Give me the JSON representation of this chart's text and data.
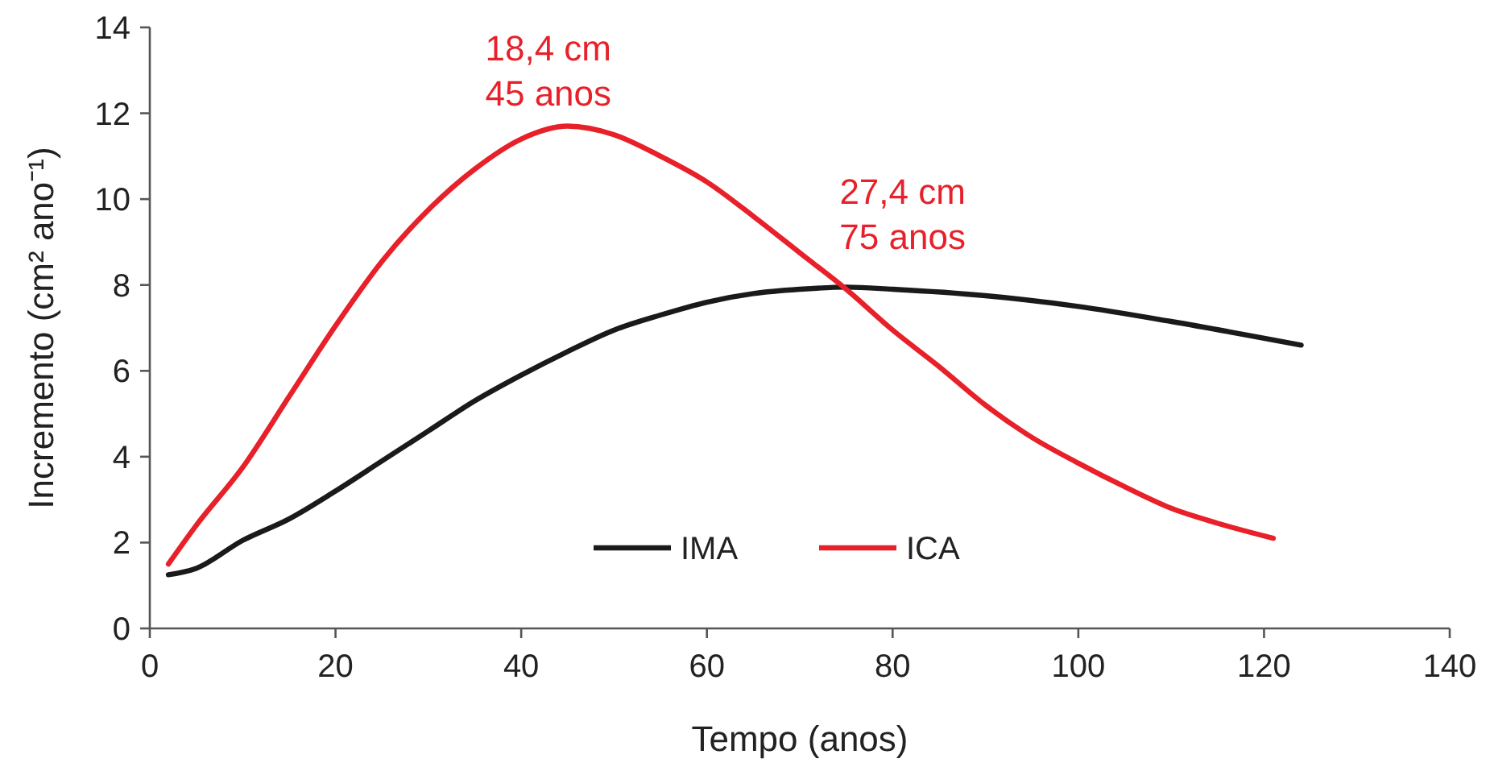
{
  "chart_data": {
    "type": "line",
    "xlabel": "Tempo (anos)",
    "ylabel": "Incremento (cm² ano⁻¹)",
    "xlim": [
      0,
      140
    ],
    "xticks": [
      0,
      20,
      40,
      60,
      80,
      100,
      120,
      140
    ],
    "ylim": [
      0,
      14
    ],
    "yticks": [
      0,
      2,
      4,
      6,
      8,
      10,
      12,
      14
    ],
    "grid": false,
    "legend": "bottom",
    "marker": "none",
    "line_style": "solid",
    "series": [
      {
        "name": "IMA",
        "color": "#1a1a1a",
        "x": [
          2,
          5,
          10,
          15,
          20,
          25,
          30,
          35,
          40,
          45,
          50,
          55,
          60,
          65,
          70,
          75,
          80,
          90,
          100,
          110,
          124
        ],
        "values": [
          1.25,
          1.4,
          2.05,
          2.55,
          3.2,
          3.9,
          4.6,
          5.3,
          5.9,
          6.45,
          6.95,
          7.3,
          7.6,
          7.8,
          7.9,
          7.95,
          7.9,
          7.75,
          7.5,
          7.15,
          6.6
        ]
      },
      {
        "name": "ICA",
        "color": "#e8202a",
        "x": [
          2,
          5,
          10,
          15,
          20,
          25,
          30,
          35,
          40,
          45,
          50,
          55,
          60,
          65,
          70,
          75,
          80,
          85,
          90,
          95,
          100,
          105,
          110,
          115,
          121
        ],
        "values": [
          1.5,
          2.4,
          3.75,
          5.4,
          7.05,
          8.55,
          9.75,
          10.7,
          11.4,
          11.7,
          11.5,
          11.0,
          10.4,
          9.6,
          8.75,
          7.9,
          6.95,
          6.1,
          5.2,
          4.45,
          3.85,
          3.3,
          2.8,
          2.45,
          2.1
        ]
      }
    ],
    "annotations": [
      {
        "text": "18,4 cm\n45 anos",
        "x": 45,
        "y": 11.7
      },
      {
        "text": "27,4 cm\n75 anos",
        "x": 75,
        "y": 7.9
      }
    ]
  }
}
